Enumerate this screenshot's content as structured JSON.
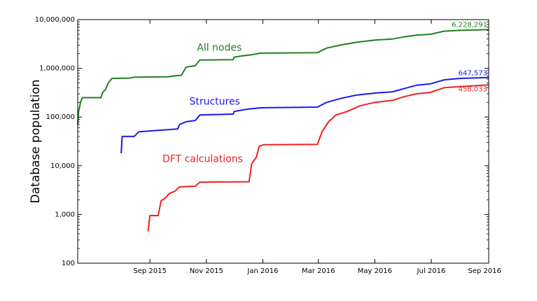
{
  "chart_data": {
    "type": "line",
    "ylabel": "Database population",
    "xlabel": "",
    "yscale": "log",
    "ylim": [
      100,
      10000000
    ],
    "xlim": [
      "2015-06-15",
      "2016-09-01"
    ],
    "yticks": [
      {
        "value": 100,
        "label": "100"
      },
      {
        "value": 1000,
        "label": "1,000"
      },
      {
        "value": 10000,
        "label": "10,000"
      },
      {
        "value": 100000,
        "label": "100,000"
      },
      {
        "value": 1000000,
        "label": "1,000,000"
      },
      {
        "value": 10000000,
        "label": "10,000,000"
      }
    ],
    "xticks": [
      {
        "date": "2015-09-01",
        "label": "Sep 2015"
      },
      {
        "date": "2015-11-01",
        "label": "Nov 2015"
      },
      {
        "date": "2016-01-01",
        "label": "Jan 2016"
      },
      {
        "date": "2016-03-01",
        "label": "Mar 2016"
      },
      {
        "date": "2016-05-01",
        "label": "May 2016"
      },
      {
        "date": "2016-07-01",
        "label": "Jul 2016"
      },
      {
        "date": "2016-09-01",
        "label": "Sep 2016"
      }
    ],
    "grid": false,
    "series": [
      {
        "name": "All nodes",
        "color": "#208020",
        "end_label": "6,228,291",
        "points": [
          [
            "2015-06-15",
            70000
          ],
          [
            "2015-06-16",
            130000
          ],
          [
            "2015-06-18",
            200000
          ],
          [
            "2015-06-20",
            250000
          ],
          [
            "2015-07-10",
            250000
          ],
          [
            "2015-07-12",
            320000
          ],
          [
            "2015-07-15",
            370000
          ],
          [
            "2015-07-18",
            500000
          ],
          [
            "2015-07-22",
            620000
          ],
          [
            "2015-08-10",
            630000
          ],
          [
            "2015-08-15",
            660000
          ],
          [
            "2015-09-20",
            670000
          ],
          [
            "2015-09-25",
            690000
          ],
          [
            "2015-10-05",
            720000
          ],
          [
            "2015-10-10",
            1050000
          ],
          [
            "2015-10-15",
            1100000
          ],
          [
            "2015-10-20",
            1130000
          ],
          [
            "2015-10-25",
            1480000
          ],
          [
            "2015-11-30",
            1500000
          ],
          [
            "2015-12-01",
            1700000
          ],
          [
            "2015-12-10",
            1800000
          ],
          [
            "2015-12-20",
            1900000
          ],
          [
            "2015-12-30",
            2050000
          ],
          [
            "2016-02-29",
            2100000
          ],
          [
            "2016-03-10",
            2600000
          ],
          [
            "2016-03-25",
            3000000
          ],
          [
            "2016-04-10",
            3400000
          ],
          [
            "2016-05-01",
            3800000
          ],
          [
            "2016-05-20",
            4000000
          ],
          [
            "2016-06-01",
            4400000
          ],
          [
            "2016-06-15",
            4800000
          ],
          [
            "2016-06-30",
            5000000
          ],
          [
            "2016-07-15",
            5800000
          ],
          [
            "2016-08-01",
            6000000
          ],
          [
            "2016-09-01",
            6228291
          ]
        ]
      },
      {
        "name": "Structures",
        "color": "#1a1aee",
        "end_label": "647,573",
        "points": [
          [
            "2015-08-01",
            18000
          ],
          [
            "2015-08-02",
            40000
          ],
          [
            "2015-08-15",
            40000
          ],
          [
            "2015-08-20",
            50000
          ],
          [
            "2015-09-20",
            55000
          ],
          [
            "2015-10-01",
            57000
          ],
          [
            "2015-10-03",
            70000
          ],
          [
            "2015-10-10",
            80000
          ],
          [
            "2015-10-20",
            85000
          ],
          [
            "2015-10-25",
            110000
          ],
          [
            "2015-11-30",
            115000
          ],
          [
            "2015-12-01",
            130000
          ],
          [
            "2015-12-15",
            145000
          ],
          [
            "2015-12-30",
            155000
          ],
          [
            "2016-02-29",
            160000
          ],
          [
            "2016-03-10",
            200000
          ],
          [
            "2016-03-25",
            240000
          ],
          [
            "2016-04-10",
            280000
          ],
          [
            "2016-05-01",
            310000
          ],
          [
            "2016-05-20",
            330000
          ],
          [
            "2016-06-01",
            380000
          ],
          [
            "2016-06-15",
            450000
          ],
          [
            "2016-06-30",
            480000
          ],
          [
            "2016-07-15",
            580000
          ],
          [
            "2016-08-01",
            620000
          ],
          [
            "2016-09-01",
            647573
          ]
        ]
      },
      {
        "name": "DFT calculations",
        "color": "#ee2020",
        "end_label": "458,033",
        "points": [
          [
            "2015-08-30",
            450
          ],
          [
            "2015-09-01",
            950
          ],
          [
            "2015-09-10",
            950
          ],
          [
            "2015-09-13",
            1900
          ],
          [
            "2015-09-18",
            2200
          ],
          [
            "2015-09-22",
            2700
          ],
          [
            "2015-09-28",
            3000
          ],
          [
            "2015-10-03",
            3700
          ],
          [
            "2015-10-20",
            3800
          ],
          [
            "2015-10-25",
            4600
          ],
          [
            "2015-12-17",
            4700
          ],
          [
            "2015-12-18",
            6000
          ],
          [
            "2015-12-20",
            11000
          ],
          [
            "2015-12-25",
            15000
          ],
          [
            "2015-12-28",
            25000
          ],
          [
            "2016-01-02",
            27000
          ],
          [
            "2016-02-29",
            27500
          ],
          [
            "2016-03-05",
            50000
          ],
          [
            "2016-03-12",
            80000
          ],
          [
            "2016-03-20",
            110000
          ],
          [
            "2016-04-01",
            130000
          ],
          [
            "2016-04-15",
            170000
          ],
          [
            "2016-05-01",
            200000
          ],
          [
            "2016-05-20",
            220000
          ],
          [
            "2016-06-01",
            260000
          ],
          [
            "2016-06-15",
            300000
          ],
          [
            "2016-06-30",
            320000
          ],
          [
            "2016-07-15",
            400000
          ],
          [
            "2016-08-01",
            420000
          ],
          [
            "2016-09-01",
            458033
          ]
        ]
      }
    ]
  }
}
